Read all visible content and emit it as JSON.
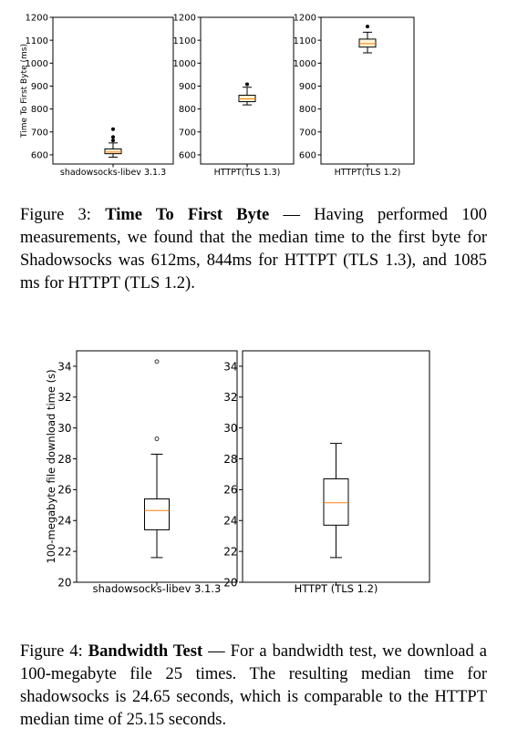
{
  "chart_data": [
    {
      "type": "box",
      "figure": "fig3",
      "ylabel": "Time To First Byte (ms)",
      "ylim": [
        560,
        1200
      ],
      "yticks": [
        600,
        700,
        800,
        900,
        1000,
        1100,
        1200
      ],
      "grid": false,
      "panels": [
        {
          "category": "shadowsocks-libev 3.1.3",
          "whisker_low": 590,
          "q1": 605,
          "median": 612,
          "q3": 626,
          "whisker_high": 652,
          "outliers": [
            663,
            678,
            712
          ]
        },
        {
          "category": "HTTPT(TLS 1.3)",
          "whisker_low": 818,
          "q1": 832,
          "median": 844,
          "q3": 860,
          "whisker_high": 895,
          "outliers": [
            908
          ]
        },
        {
          "category": "HTTPT(TLS 1.2)",
          "whisker_low": 1045,
          "q1": 1070,
          "median": 1085,
          "q3": 1105,
          "whisker_high": 1135,
          "outliers": [
            1160
          ]
        }
      ]
    },
    {
      "type": "box",
      "figure": "fig4",
      "ylabel": "100-megabyte file download time (s)",
      "ylim": [
        20,
        35
      ],
      "yticks": [
        20,
        22,
        24,
        26,
        28,
        30,
        32,
        34
      ],
      "grid": false,
      "panels": [
        {
          "category": "shadowsocks-libev 3.1.3",
          "whisker_low": 21.6,
          "q1": 23.4,
          "median": 24.65,
          "q3": 25.4,
          "whisker_high": 28.3,
          "outliers": [
            29.3,
            34.3
          ]
        },
        {
          "category": "HTTPT (TLS 1.2)",
          "whisker_low": 21.6,
          "q1": 23.7,
          "median": 25.15,
          "q3": 26.7,
          "whisker_high": 29.0,
          "outliers": []
        }
      ]
    }
  ],
  "colors": {
    "box_fill": "#fff4d6",
    "median": "#ff7f0e",
    "line": "#000000"
  },
  "captions": {
    "fig3": {
      "label": "Figure 3: ",
      "title": "Time To First Byte",
      "body": " — Having performed 100 measurements, we found that the median time to the first byte for Shadowsocks was 612ms, 844ms for HTTPT (TLS 1.3), and 1085 ms for HTTPT (TLS 1.2)."
    },
    "fig4": {
      "label": "Figure 4: ",
      "title": "Bandwidth Test",
      "body": " — For a bandwidth test, we download a 100-megabyte file 25 times. The resulting median time for shadowsocks is 24.65 seconds, which is comparable to the HTTPT median time of 25.15 seconds."
    }
  }
}
